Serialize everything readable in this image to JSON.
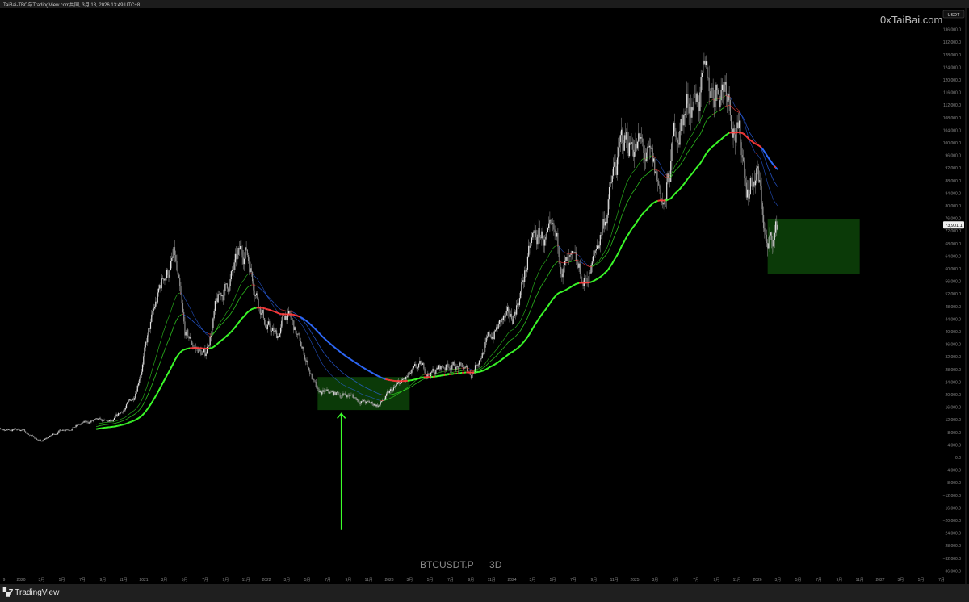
{
  "header": {
    "title": "TaiBai-TBC与TradingView.com共同, 3月 18, 2026 13:49 UTC+8"
  },
  "watermark": "0xTaiBai.com",
  "symbol": {
    "ticker": "BTCUSDT.P",
    "interval": "3D"
  },
  "footer": {
    "brand": "TradingView",
    "logo_icon": "tradingview-logo-icon"
  },
  "price_axis": {
    "currency": "USDT",
    "last_price_label": "73,901.1"
  },
  "colors": {
    "background": "#000000",
    "candles": "#e0e0e0",
    "ma_rising": "#3cff2a",
    "ma_flat": "#ff3b3b",
    "ma_falling": "#2f6bff",
    "zone_fill": "#0b3a08",
    "arrow": "#3cff2a"
  },
  "chart_data": {
    "type": "candlestick",
    "title": "",
    "xlabel": "",
    "ylabel": "",
    "ylim": [
      -36000,
      138000
    ],
    "y_scale": "linear",
    "grid": false,
    "y_ticks": [
      136000,
      132000,
      128000,
      124000,
      120000,
      116000,
      112000,
      108000,
      104000,
      100000,
      96000,
      92000,
      88000,
      84000,
      80000,
      76000,
      72000,
      68000,
      64000,
      60000,
      56000,
      52000,
      48000,
      44000,
      40000,
      36000,
      32000,
      28000,
      24000,
      20000,
      16000,
      12000,
      8000,
      4000,
      0,
      -4000,
      -8000,
      -12000,
      -16000,
      -20000,
      -24000,
      -28000,
      -32000,
      -36000
    ],
    "y_tick_labels": [
      "136,000.0",
      "132,000.0",
      "128,000.0",
      "124,000.0",
      "120,000.0",
      "116,000.0",
      "112,000.0",
      "108,000.0",
      "104,000.0",
      "100,000.0",
      "96,000.0",
      "92,000.0",
      "88,000.0",
      "84,000.0",
      "80,000.0",
      "76,000.0",
      "72,000.0",
      "68,000.0",
      "64,000.0",
      "60,000.0",
      "56,000.0",
      "52,000.0",
      "48,000.0",
      "44,000.0",
      "40,000.0",
      "36,000.0",
      "32,000.0",
      "28,000.0",
      "24,000.0",
      "20,000.0",
      "16,000.0",
      "12,000.0",
      "8,000.0",
      "4,000.0",
      "0.0",
      "−4,000.0",
      "−8,000.0",
      "−12,000.0",
      "−16,000.0",
      "−20,000.0",
      "−24,000.0",
      "−28,000.0",
      "−32,000.0",
      "−36,000.0"
    ],
    "x_ticks": [
      {
        "label": "9",
        "date": "2019-11"
      },
      {
        "label": "2020",
        "date": "2020-01"
      },
      {
        "label": "3月",
        "date": "2020-03"
      },
      {
        "label": "5月",
        "date": "2020-05"
      },
      {
        "label": "7月",
        "date": "2020-07"
      },
      {
        "label": "9月",
        "date": "2020-09"
      },
      {
        "label": "11月",
        "date": "2020-11"
      },
      {
        "label": "2021",
        "date": "2021-01"
      },
      {
        "label": "3月",
        "date": "2021-03"
      },
      {
        "label": "5月",
        "date": "2021-05"
      },
      {
        "label": "7月",
        "date": "2021-07"
      },
      {
        "label": "9月",
        "date": "2021-09"
      },
      {
        "label": "11月",
        "date": "2021-11"
      },
      {
        "label": "2022",
        "date": "2022-01"
      },
      {
        "label": "3月",
        "date": "2022-03"
      },
      {
        "label": "5月",
        "date": "2022-05"
      },
      {
        "label": "7月",
        "date": "2022-07"
      },
      {
        "label": "9月",
        "date": "2022-09"
      },
      {
        "label": "11月",
        "date": "2022-11"
      },
      {
        "label": "2023",
        "date": "2023-01"
      },
      {
        "label": "3月",
        "date": "2023-03"
      },
      {
        "label": "5月",
        "date": "2023-05"
      },
      {
        "label": "7月",
        "date": "2023-07"
      },
      {
        "label": "9月",
        "date": "2023-09"
      },
      {
        "label": "11月",
        "date": "2023-11"
      },
      {
        "label": "2024",
        "date": "2024-01"
      },
      {
        "label": "3月",
        "date": "2024-03"
      },
      {
        "label": "5月",
        "date": "2024-05"
      },
      {
        "label": "7月",
        "date": "2024-07"
      },
      {
        "label": "9月",
        "date": "2024-09"
      },
      {
        "label": "11月",
        "date": "2024-11"
      },
      {
        "label": "2025",
        "date": "2025-01"
      },
      {
        "label": "3月",
        "date": "2025-03"
      },
      {
        "label": "5月",
        "date": "2025-05"
      },
      {
        "label": "7月",
        "date": "2025-07"
      },
      {
        "label": "9月",
        "date": "2025-09"
      },
      {
        "label": "11月",
        "date": "2025-11"
      },
      {
        "label": "2026",
        "date": "2026-01"
      },
      {
        "label": "3月",
        "date": "2026-03"
      },
      {
        "label": "5月",
        "date": "2026-05"
      },
      {
        "label": "7月",
        "date": "2026-07"
      },
      {
        "label": "9月",
        "date": "2026-09"
      },
      {
        "label": "11月",
        "date": "2026-11"
      },
      {
        "label": "2027",
        "date": "2027-01"
      },
      {
        "label": "3月",
        "date": "2027-03"
      },
      {
        "label": "5月",
        "date": "2027-05"
      },
      {
        "label": "7月",
        "date": "2027-07"
      }
    ],
    "series": [
      {
        "type": "candlestick",
        "approximate_closes": [
          [
            "2019-10",
            8700
          ],
          [
            "2020-01",
            9000
          ],
          [
            "2020-03",
            5000
          ],
          [
            "2020-05",
            9000
          ],
          [
            "2020-08",
            11500
          ],
          [
            "2020-10",
            11000
          ],
          [
            "2020-12",
            19000
          ],
          [
            "2021-01",
            33000
          ],
          [
            "2021-03",
            58000
          ],
          [
            "2021-04",
            63000
          ],
          [
            "2021-05",
            38000
          ],
          [
            "2021-07",
            32000
          ],
          [
            "2021-08",
            47000
          ],
          [
            "2021-11",
            67000
          ],
          [
            "2022-01",
            42000
          ],
          [
            "2022-02",
            38000
          ],
          [
            "2022-03",
            46000
          ],
          [
            "2022-05",
            30000
          ],
          [
            "2022-06",
            20000
          ],
          [
            "2022-09",
            20000
          ],
          [
            "2022-11",
            17000
          ],
          [
            "2022-12",
            16800
          ],
          [
            "2023-02",
            23000
          ],
          [
            "2023-04",
            28000
          ],
          [
            "2023-05",
            27000
          ],
          [
            "2023-07",
            30000
          ],
          [
            "2023-09",
            26500
          ],
          [
            "2023-10",
            34000
          ],
          [
            "2023-12",
            43000
          ],
          [
            "2024-01",
            43000
          ],
          [
            "2024-03",
            68000
          ],
          [
            "2024-04",
            70000
          ],
          [
            "2024-06",
            62000
          ],
          [
            "2024-08",
            55000
          ],
          [
            "2024-09",
            62000
          ],
          [
            "2024-11",
            90000
          ],
          [
            "2024-12",
            100000
          ],
          [
            "2025-01",
            102000
          ],
          [
            "2025-04",
            80000
          ],
          [
            "2025-05",
            104000
          ],
          [
            "2025-07",
            118000
          ],
          [
            "2025-08",
            115000
          ],
          [
            "2025-10",
            122000
          ],
          [
            "2025-11",
            105000
          ],
          [
            "2025-12",
            88000
          ],
          [
            "2026-01",
            90000
          ],
          [
            "2026-02",
            65000
          ],
          [
            "2026-03",
            73901.1
          ]
        ]
      },
      {
        "type": "moving-average",
        "role": "fast"
      },
      {
        "type": "moving-average",
        "role": "medium"
      },
      {
        "type": "moving-average",
        "role": "slow"
      }
    ],
    "annotations": [
      {
        "type": "zone",
        "from": "2022-06",
        "to": "2023-03",
        "price_top": 25600,
        "price_bottom": 15100
      },
      {
        "type": "zone",
        "from": "2026-02",
        "to": "2026-11",
        "price_top": 75900,
        "price_bottom": 58200
      },
      {
        "type": "arrow",
        "direction": "up",
        "date": "2022-08",
        "price_from": -23000,
        "price_to": 14000
      }
    ]
  }
}
